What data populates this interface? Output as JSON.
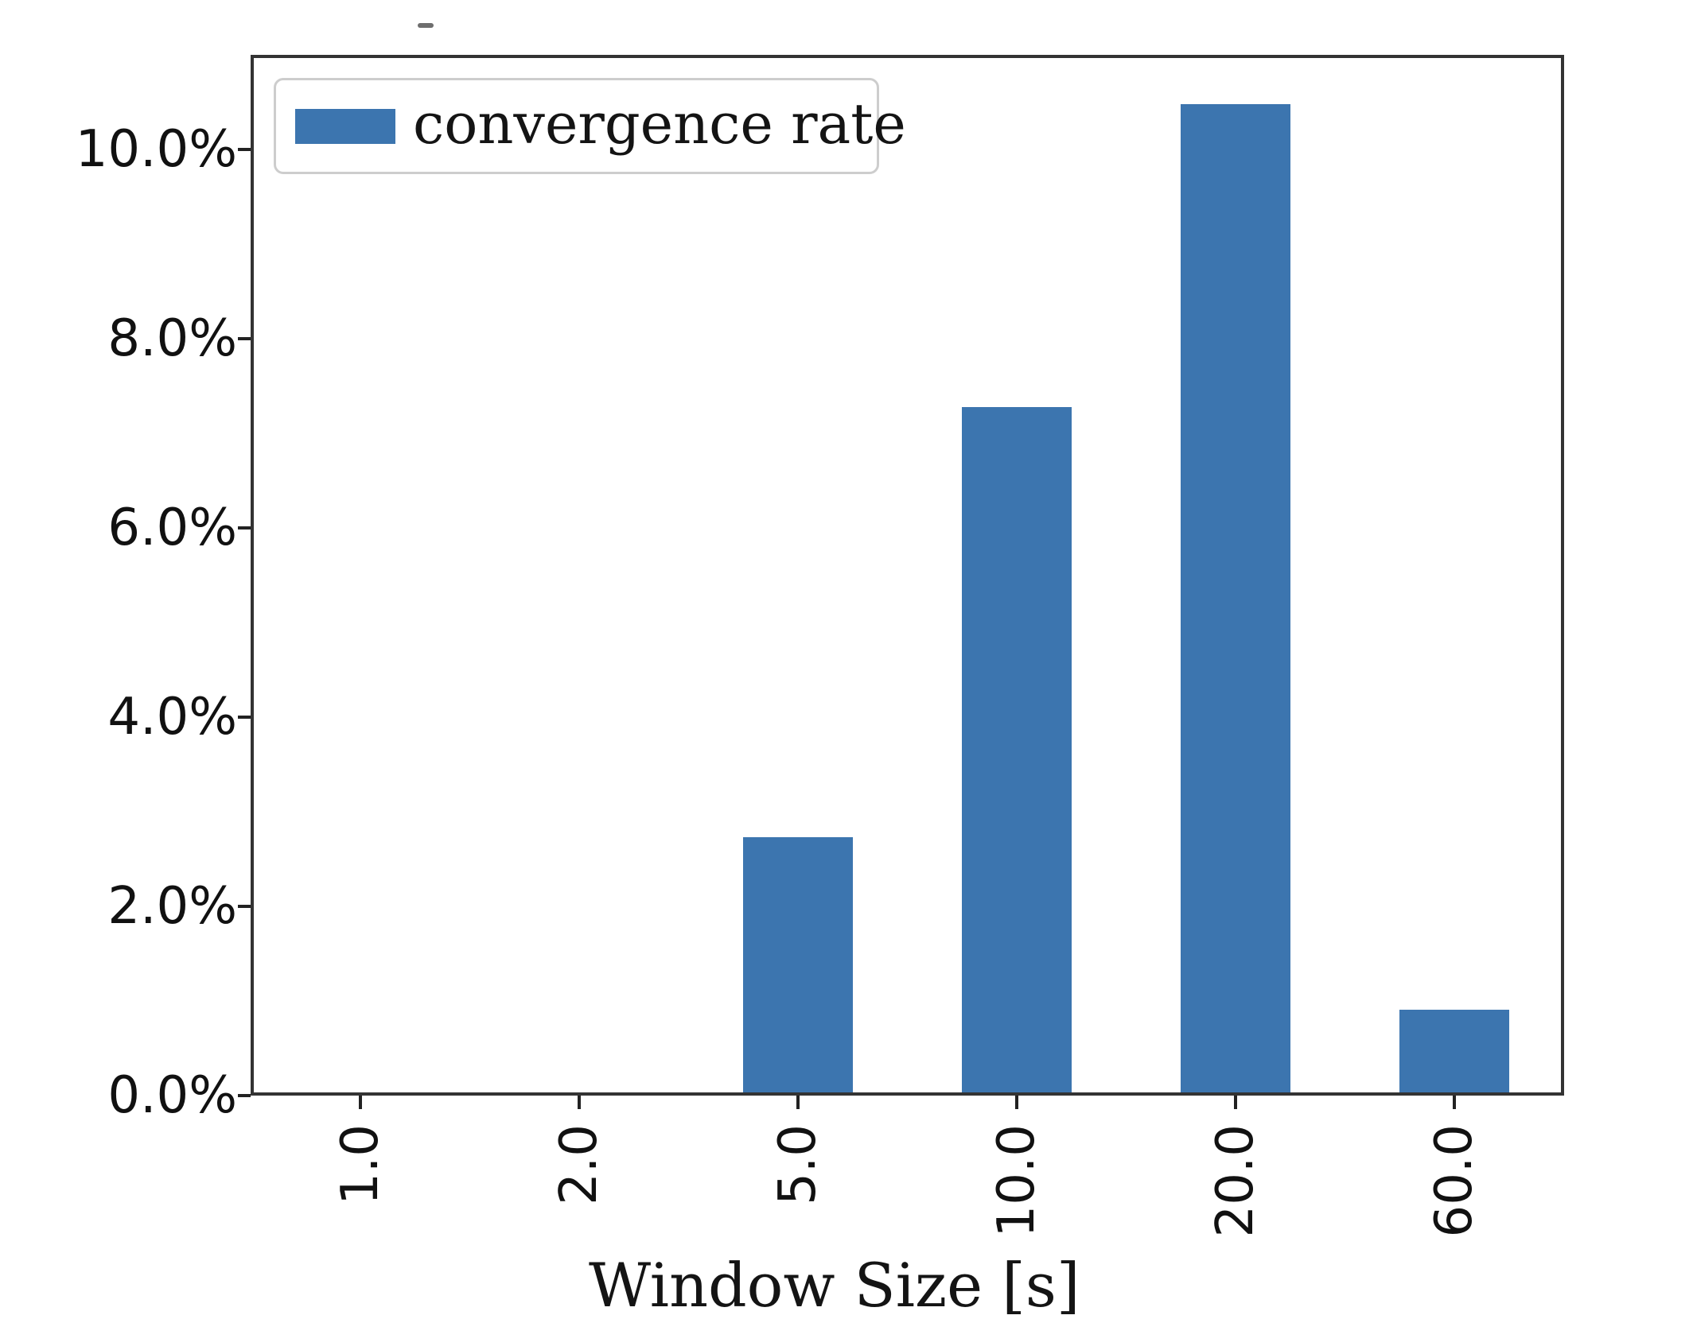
{
  "chart_data": {
    "type": "bar",
    "title": "",
    "xlabel": "Window Size [s]",
    "ylabel": "",
    "categories": [
      "1.0",
      "2.0",
      "5.0",
      "10.0",
      "20.0",
      "60.0"
    ],
    "series": [
      {
        "name": "convergence rate",
        "values": [
          0.0,
          0.0,
          2.73,
          7.28,
          10.48,
          0.91
        ]
      }
    ],
    "value_unit": "percent",
    "ylim": [
      0,
      11
    ],
    "y_ticks": {
      "values": [
        0,
        2,
        4,
        6,
        8,
        10
      ],
      "labels": [
        "0.0%",
        "2.0%",
        "4.0%",
        "6.0%",
        "8.0%",
        "10.0%"
      ]
    },
    "x_tick_rotation_deg": 90,
    "grid": false,
    "legend": {
      "visible": true,
      "position": "upper left",
      "entries": [
        "convergence rate"
      ]
    },
    "colors": {
      "bar": "#3c75af",
      "axis": "#333333",
      "text": "#111111",
      "legend_border": "#cdcdcd"
    }
  }
}
